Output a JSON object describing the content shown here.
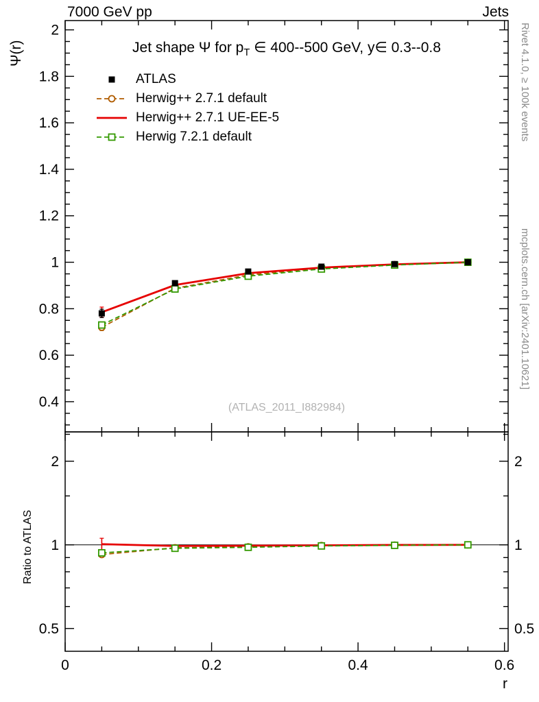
{
  "header": {
    "left": "7000 GeV pp",
    "right": "Jets"
  },
  "title_parts": {
    "t1": "Jet shape Ψ for p",
    "sub": "T",
    "t2": " ∈ 400--500 GeV, y∈ 0.3--0.8"
  },
  "annotations": {
    "watermark": "(ATLAS_2011_I882984)",
    "rivet_banner": "Rivet 4.1.0, ≥ 100k events",
    "mcplots_banner": "mcplots.cern.ch [arXiv:2401.10621]"
  },
  "chart_data": {
    "type": "line",
    "title": "Jet shape Ψ for p_T ∈ 400--500 GeV, y ∈ 0.3--0.8",
    "xlabel": "r",
    "ylabel": "Ψ(r)",
    "ratio_ylabel": "Ratio to ATLAS",
    "x": [
      0.05,
      0.15,
      0.25,
      0.35,
      0.45,
      0.55
    ],
    "x_axis": {
      "lim": [
        0,
        0.605
      ],
      "ticks": [
        0,
        0.2,
        0.4,
        0.6
      ],
      "tick_labels": [
        "0",
        "0.2",
        "0.4",
        "0.6"
      ],
      "minor_step": 0.05
    },
    "y_axis_main": {
      "scale": "linear",
      "lim": [
        0.27,
        2.04
      ],
      "ticks": [
        0.4,
        0.6,
        0.8,
        1,
        1.2,
        1.4,
        1.6,
        1.8,
        2
      ],
      "tick_labels": [
        "0.4",
        "0.6",
        "0.8",
        "1",
        "1.2",
        "1.4",
        "1.6",
        "1.8",
        "2"
      ],
      "minor_step": 0.05
    },
    "y_axis_ratio": {
      "scale": "log",
      "lim": [
        0.414,
        2.55
      ],
      "ticks": [
        0.5,
        1,
        2
      ],
      "tick_labels": [
        "0.5",
        "1",
        "2"
      ],
      "minor_ticks": [
        0.6,
        0.7,
        0.8,
        0.9,
        1.5,
        2.5
      ]
    },
    "legend_position": "top-left",
    "grid": false,
    "series": [
      {
        "name": "ATLAS",
        "role": "data",
        "color": "#000000",
        "marker": "square-filled",
        "line": "none",
        "y": [
          0.78,
          0.91,
          0.96,
          0.981,
          0.992,
          1.0
        ],
        "yerr": [
          0.018,
          0.01,
          0.007,
          0.005,
          0.003,
          0.002
        ],
        "ratio": [
          1,
          1,
          1,
          1,
          1,
          1
        ],
        "ratio_err": [
          0,
          0,
          0,
          0,
          0,
          0
        ]
      },
      {
        "name": "Herwig++ 2.7.1 default",
        "role": "mc",
        "color": "#b05c00",
        "marker": "circle-open",
        "line": "dashed",
        "y": [
          0.72,
          0.888,
          0.945,
          0.975,
          0.99,
          1.0
        ],
        "yerr": [
          0.014,
          0.006,
          0.004,
          0.003,
          0.002,
          0.001
        ],
        "ratio": [
          0.923,
          0.976,
          0.984,
          0.994,
          0.998,
          1.0
        ],
        "ratio_err": [
          0.018,
          0.007,
          0.005,
          0.003,
          0.002,
          0.001
        ]
      },
      {
        "name": "Herwig++ 2.7.1 UE-EE-5",
        "role": "mc",
        "color": "#e60000",
        "marker": "none",
        "line": "solid",
        "y": [
          0.785,
          0.902,
          0.953,
          0.977,
          0.991,
          1.0
        ],
        "yerr": [
          0.022,
          0.008,
          0.005,
          0.003,
          0.002,
          0.001
        ],
        "ratio": [
          1.006,
          0.991,
          0.993,
          0.996,
          0.999,
          1.0
        ],
        "ratio_err": [
          0.05,
          0.009,
          0.005,
          0.004,
          0.002,
          0.001
        ]
      },
      {
        "name": "Herwig 7.2.1 default",
        "role": "mc",
        "color": "#339900",
        "marker": "square-open",
        "line": "dashed",
        "y": [
          0.73,
          0.885,
          0.94,
          0.971,
          0.988,
          1.0
        ],
        "yerr": [
          0.012,
          0.006,
          0.004,
          0.003,
          0.002,
          0.001
        ],
        "ratio": [
          0.936,
          0.972,
          0.98,
          0.991,
          0.996,
          1.0
        ],
        "ratio_err": [
          0.016,
          0.007,
          0.004,
          0.003,
          0.002,
          0.001
        ]
      }
    ]
  }
}
